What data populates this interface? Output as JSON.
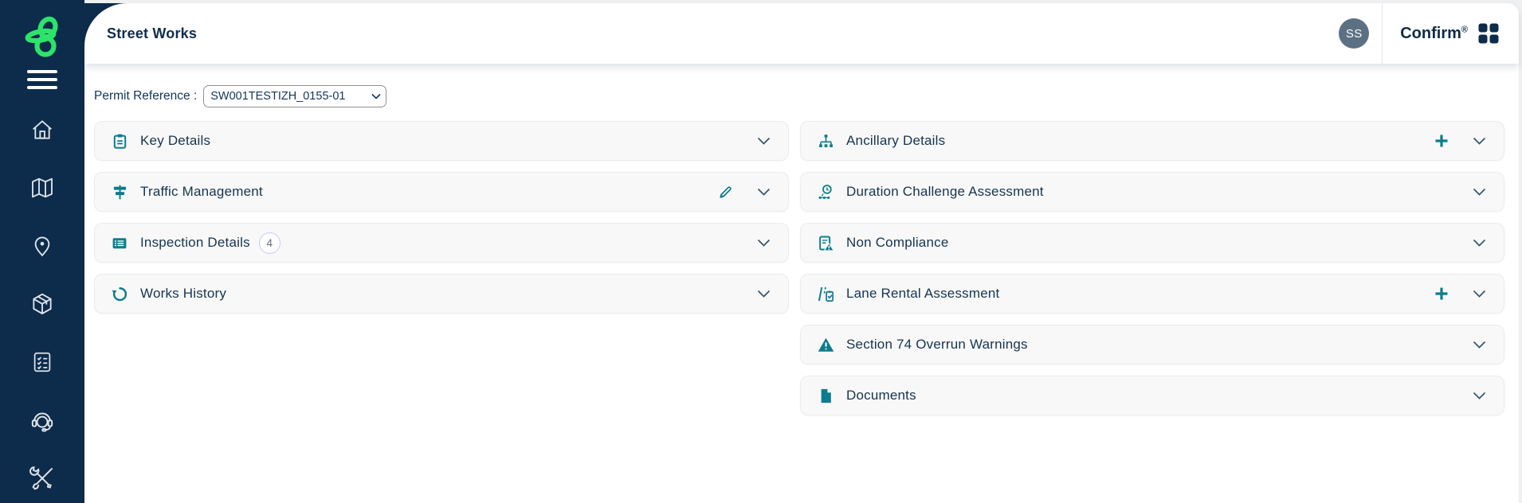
{
  "colors": {
    "sidebar_navy": "#0d2b4a",
    "accent_teal": "#0e7c8c",
    "brand_green": "#2ee36a",
    "text_navy": "#16344f",
    "avatar_bg": "#5b7082"
  },
  "header": {
    "app_title": "Street Works",
    "avatar_initials": "SS",
    "brand_name": "Confirm",
    "brand_reg": "®"
  },
  "sidebar": {
    "items": [
      {
        "icon": "menu-icon"
      },
      {
        "icon": "home-icon"
      },
      {
        "icon": "map-icon"
      },
      {
        "icon": "location-pin-icon"
      },
      {
        "icon": "package-icon"
      },
      {
        "icon": "checklist-icon"
      },
      {
        "icon": "headset-icon"
      },
      {
        "icon": "tools-icon"
      }
    ]
  },
  "permit": {
    "label": "Permit Reference :",
    "selected_value": "SW001TESTIZH_0155-01",
    "options": [
      "SW001TESTIZH_0155-01"
    ]
  },
  "panels": {
    "left": [
      {
        "label": "Key Details",
        "icon": "key-details-icon"
      },
      {
        "label": "Traffic Management",
        "icon": "traffic-management-icon",
        "has_edit": true
      },
      {
        "label": "Inspection Details",
        "icon": "inspection-details-icon",
        "badge": "4"
      },
      {
        "label": "Works History",
        "icon": "works-history-icon"
      }
    ],
    "right": [
      {
        "label": "Ancillary Details",
        "icon": "ancillary-details-icon",
        "has_add": true
      },
      {
        "label": "Duration Challenge Assessment",
        "icon": "duration-challenge-icon"
      },
      {
        "label": "Non Compliance",
        "icon": "non-compliance-icon"
      },
      {
        "label": "Lane Rental Assessment",
        "icon": "lane-rental-icon",
        "has_add": true
      },
      {
        "label": "Section 74 Overrun Warnings",
        "icon": "section-74-warning-icon"
      },
      {
        "label": "Documents",
        "icon": "documents-icon"
      }
    ]
  }
}
